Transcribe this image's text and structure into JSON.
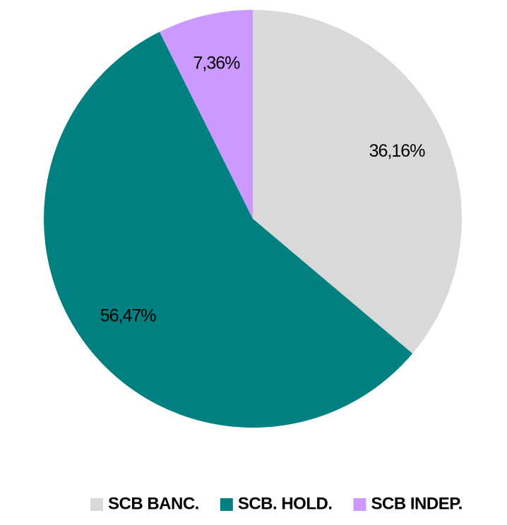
{
  "chart_data": {
    "type": "pie",
    "categories": [
      "SCB BANC.",
      "SCB. HOLD.",
      "SCB INDEP."
    ],
    "values": [
      36.16,
      56.47,
      7.36
    ],
    "value_labels": [
      "36,16%",
      "56,47%",
      "7,36%"
    ],
    "colors": [
      "#d9d9d9",
      "#008080",
      "#cc99ff"
    ],
    "legend": "bottom"
  }
}
